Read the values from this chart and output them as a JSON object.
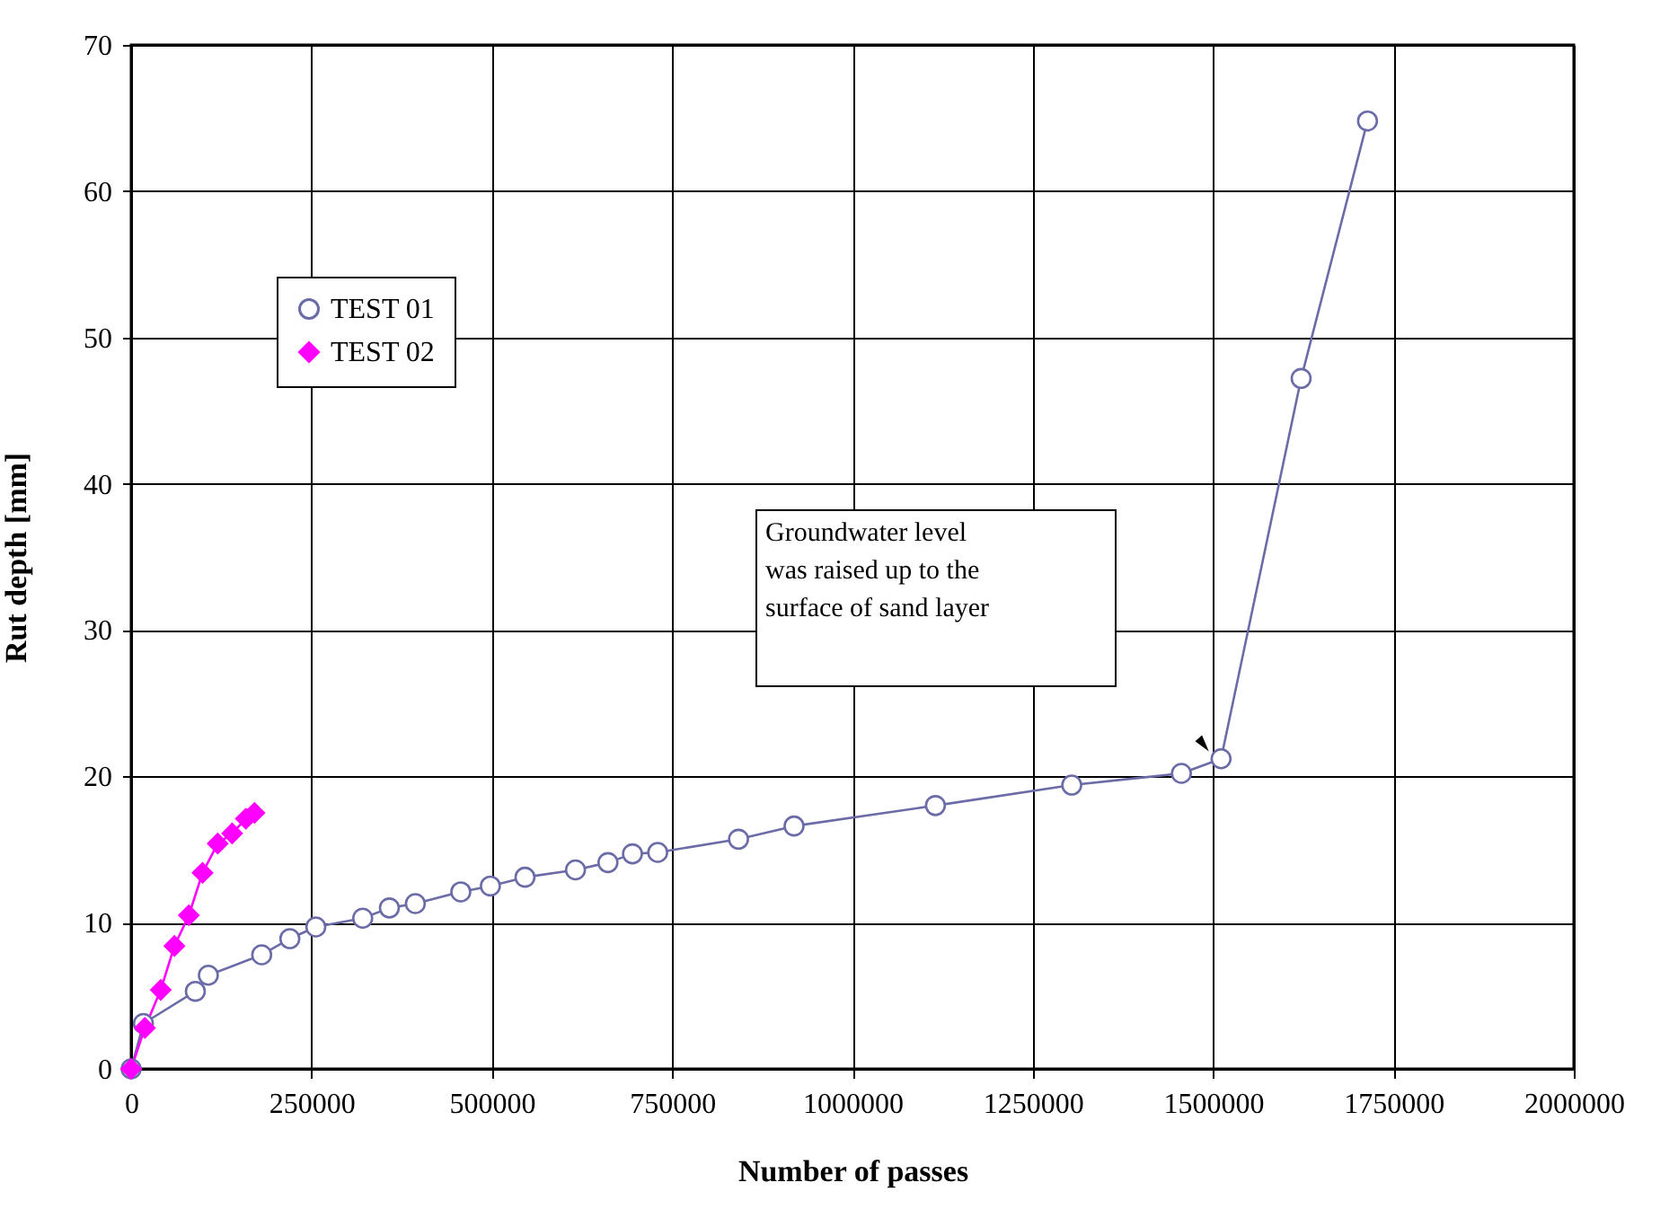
{
  "chart_data": {
    "type": "line",
    "xlabel": "Number of passes",
    "ylabel": "Rut depth [mm]",
    "xlim": [
      0,
      2000000
    ],
    "xticks": [
      0,
      250000,
      500000,
      750000,
      1000000,
      1250000,
      1500000,
      1750000,
      2000000
    ],
    "ylim": [
      0,
      70
    ],
    "yticks": [
      0,
      10,
      20,
      30,
      40,
      50,
      60,
      70
    ],
    "grid": true,
    "legend": "top left",
    "series": [
      {
        "name": "TEST 01",
        "color": "#6b6ba8",
        "marker": "circle",
        "x": [
          0,
          17000,
          89000,
          107000,
          181000,
          220000,
          256000,
          321000,
          358000,
          394000,
          457000,
          498000,
          546000,
          616000,
          661000,
          695000,
          730000,
          842000,
          919000,
          1115000,
          1304000,
          1456000,
          1511000,
          1622000,
          1714000
        ],
        "values": [
          0,
          3.1,
          5.3,
          6.4,
          7.8,
          8.9,
          9.7,
          10.3,
          11.0,
          11.3,
          12.1,
          12.5,
          13.1,
          13.6,
          14.1,
          14.7,
          14.8,
          15.7,
          16.6,
          18.0,
          19.4,
          20.2,
          21.2,
          47.2,
          64.8
        ]
      },
      {
        "name": "TEST 02",
        "color": "#ff00ff",
        "marker": "diamond",
        "x": [
          0,
          19000,
          41000,
          60000,
          80000,
          99000,
          120000,
          140000,
          159000,
          171000
        ],
        "values": [
          0,
          2.8,
          5.4,
          8.4,
          10.5,
          13.4,
          15.4,
          16.1,
          17.1,
          17.5
        ]
      }
    ],
    "annotations": [
      "Groundwater level\nwas raised up  to the\nsurface of sand layer"
    ]
  }
}
